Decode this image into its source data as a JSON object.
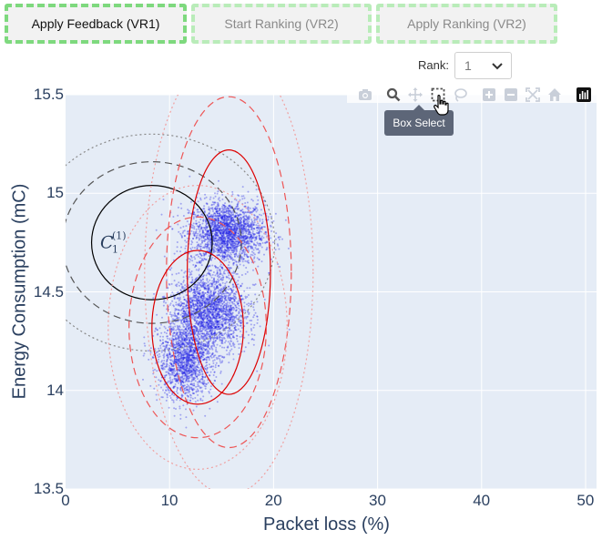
{
  "buttons": [
    {
      "label": "Apply Feedback (VR1)"
    },
    {
      "label": "Start Ranking (VR2)"
    },
    {
      "label": "Apply Ranking (VR2)"
    }
  ],
  "rank": {
    "label": "Rank:",
    "value": "1"
  },
  "modebar": {
    "icons": [
      "camera-icon",
      "zoom-icon",
      "pan-icon",
      "box-select-icon",
      "lasso-select-icon",
      "zoom-in-icon",
      "zoom-out-icon",
      "autoscale-icon",
      "reset-axes-icon",
      "plotly-logo-icon"
    ],
    "tooltip": "Box Select"
  },
  "chart_data": {
    "type": "scatter",
    "xlabel": "Packet loss (%)",
    "ylabel": "Energy Consumption (mC)",
    "xlim": [
      0,
      51
    ],
    "ylim": [
      13.5,
      15.5
    ],
    "x_ticks": [
      "0",
      "10",
      "20",
      "30",
      "40",
      "50"
    ],
    "y_ticks": [
      "13.5",
      "14",
      "14.5",
      "15",
      "15.5"
    ],
    "grid": true,
    "clusters": [
      {
        "center": [
          15.5,
          14.8
        ],
        "std": [
          1.8,
          0.08
        ],
        "count": 2200
      },
      {
        "center": [
          13.8,
          14.4
        ],
        "std": [
          1.8,
          0.1
        ],
        "count": 2200
      },
      {
        "center": [
          11.5,
          14.15
        ],
        "std": [
          1.3,
          0.1
        ],
        "count": 1500
      }
    ],
    "ellipses": [
      {
        "center": [
          8.3,
          14.75
        ],
        "half_axes": [
          5.8,
          0.29
        ],
        "color": "#000000",
        "style": "solid"
      },
      {
        "center": [
          8.3,
          14.75
        ],
        "half_axes": [
          8.6,
          0.41
        ],
        "color": "#555555",
        "style": "dashed"
      },
      {
        "center": [
          8.3,
          14.75
        ],
        "half_axes": [
          11.8,
          0.55
        ],
        "color": "#888888",
        "style": "dotted"
      },
      {
        "center": [
          15.7,
          14.6
        ],
        "half_axes": [
          4.0,
          0.62
        ],
        "color": "#dd0000",
        "style": "solid"
      },
      {
        "center": [
          15.7,
          14.6
        ],
        "half_axes": [
          6.0,
          0.89
        ],
        "color": "#ee5555",
        "style": "dashed"
      },
      {
        "center": [
          15.7,
          14.6
        ],
        "half_axes": [
          8.1,
          1.13
        ],
        "color": "#f0a0a0",
        "style": "dotted"
      },
      {
        "center": [
          12.7,
          14.32
        ],
        "half_axes": [
          4.4,
          0.39
        ],
        "color": "#dd0000",
        "style": "solid"
      },
      {
        "center": [
          12.7,
          14.32
        ],
        "half_axes": [
          6.6,
          0.56
        ],
        "color": "#ee5555",
        "style": "dashed"
      },
      {
        "center": [
          12.7,
          14.32
        ],
        "half_axes": [
          8.6,
          0.72
        ],
        "color": "#f0a0a0",
        "style": "dotted"
      }
    ],
    "annotation": {
      "text": "C",
      "sub": "1",
      "sup": "(1)",
      "x": 4.2,
      "y": 14.75
    }
  },
  "colors": {
    "plot_bg": "#e5ecf6",
    "points": "#1f1fe6",
    "grid": "#ffffff",
    "axis_text": "#2a3f5f"
  }
}
